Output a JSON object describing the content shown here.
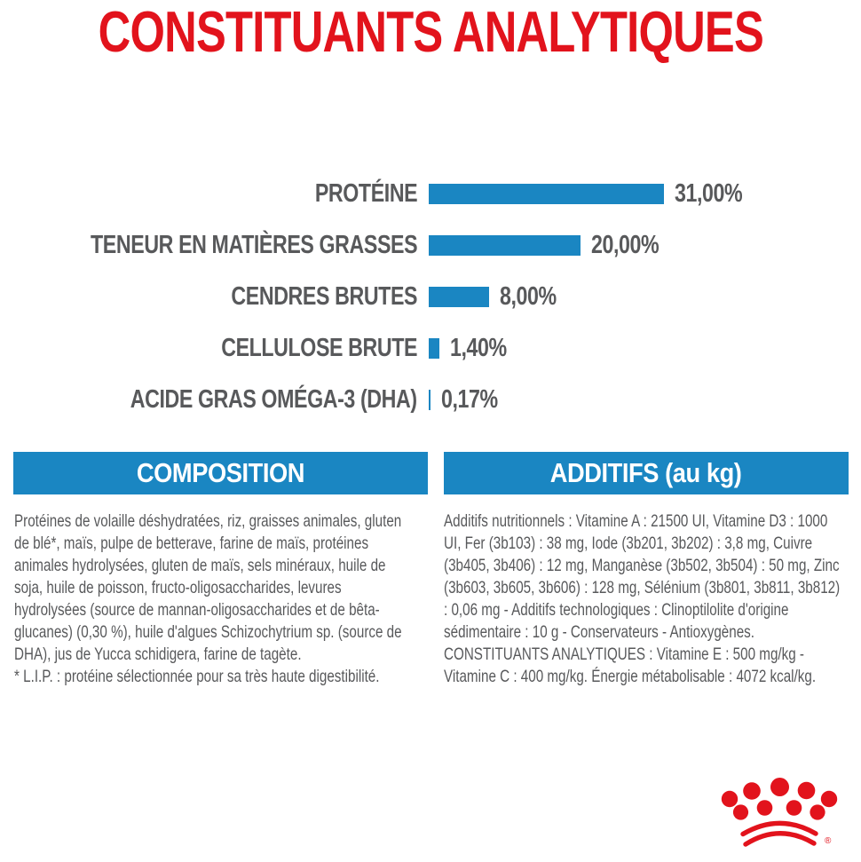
{
  "title": {
    "text": "CONSTITUANTS ANALYTIQUES"
  },
  "chart_data": {
    "type": "bar",
    "orientation": "horizontal",
    "title": "CONSTITUANTS ANALYTIQUES",
    "categories": [
      "PROTÉINE",
      "TENEUR EN MATIÈRES GRASSES",
      "CENDRES BRUTES",
      "CELLULOSE BRUTE",
      "ACIDE GRAS OMÉGA-3 (DHA)"
    ],
    "values": [
      31.0,
      20.0,
      8.0,
      1.4,
      0.17
    ],
    "value_labels": [
      "31,00%",
      "20,00%",
      "8,00%",
      "1,40%",
      "0,17%"
    ],
    "unit": "%",
    "xlim": [
      0,
      33
    ],
    "grid": false,
    "legend": false,
    "bar_color": "#1a86c2",
    "label_color": "#58595b"
  },
  "sections": {
    "composition": {
      "header": "COMPOSITION",
      "body": "Protéines de volaille déshydratées, riz, graisses animales, gluten de blé*, maïs, pulpe de betterave, farine de maïs, protéines animales hydrolysées, gluten de maïs, sels minéraux, huile de soja, huile de poisson, fructo-oligosaccharides, levures hydrolysées (source de mannan-oligosaccharides et de bêta-glucanes) (0,30 %), huile d'algues Schizochytrium sp. (source de DHA), jus de Yucca schidigera, farine de tagète.",
      "footnote": "* L.I.P. : protéine sélectionnée pour sa très haute digestibilité."
    },
    "additifs": {
      "header": "ADDITIFS (au kg)",
      "body": "Additifs nutritionnels : Vitamine A : 21500 UI, Vitamine D3 : 1000 UI, Fer (3b103) : 38 mg, Iode (3b201, 3b202) : 3,8 mg, Cuivre (3b405, 3b406) : 12 mg, Manganèse (3b502, 3b504) : 50 mg, Zinc (3b603, 3b605, 3b606) : 128 mg, Sélénium (3b801, 3b811, 3b812) : 0,06 mg - Additifs technologiques : Clinoptilolite d'origine sédimentaire : 10 g - Conservateurs - Antioxygènes. CONSTITUANTS ANALYTIQUES : Vitamine E : 500 mg/kg - Vitamine C : 400 mg/kg. Énergie métabolisable : 4072 kcal/kg."
    }
  },
  "branding": {
    "logo": "royal-canin-crown",
    "registered_mark": "®"
  },
  "colors": {
    "accent_blue": "#1a86c2",
    "brand_red": "#e2131c",
    "text_gray": "#58595b",
    "header_text": "#ffffff",
    "background": "#ffffff"
  }
}
